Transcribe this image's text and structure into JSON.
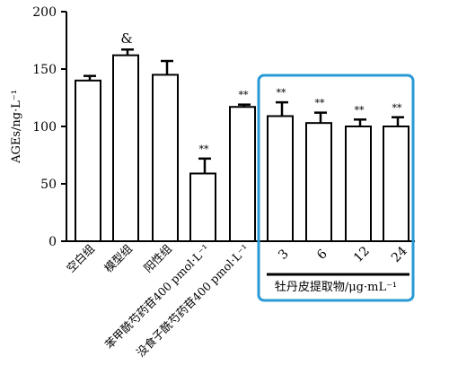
{
  "chart_data": {
    "type": "bar",
    "ylabel": "AGEs/ng·L⁻¹",
    "ylim": [
      0,
      200
    ],
    "yticks": [
      "0",
      "50",
      "100",
      "150",
      "200"
    ],
    "categories": [
      "空白组",
      "模型组",
      "阳性组",
      "苯甲酰芍药苷400 pmol·L⁻¹",
      "没食子酰芍药苷400 pmol·L⁻¹",
      "3",
      "6",
      "12",
      "24"
    ],
    "values": [
      140,
      162,
      145,
      59,
      117,
      109,
      103,
      100,
      100
    ],
    "errors": [
      4,
      5,
      12,
      13,
      2,
      12,
      9,
      6,
      8
    ],
    "annotations": [
      "",
      "&",
      "",
      "**",
      "**",
      "**",
      "**",
      "**",
      "**"
    ],
    "group_label": "牡丹皮提取物/μg·mL⁻¹",
    "highlight_color": "#2a9ad6",
    "bar_fill": "#ffffff",
    "bar_stroke": "#000000",
    "grid": false
  }
}
